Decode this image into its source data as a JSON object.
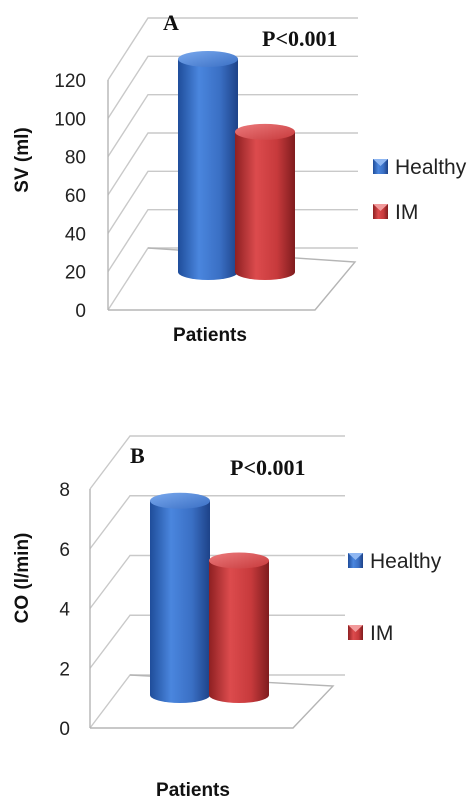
{
  "chart_data": [
    {
      "type": "bar",
      "panel_label": "A",
      "annotation": "P<0.001",
      "categories": [
        "Patients"
      ],
      "xlabel": "Patients",
      "ylabel": "SV (ml)",
      "ylim": [
        0,
        120
      ],
      "yticks": [
        0,
        20,
        40,
        60,
        80,
        100,
        120
      ],
      "series": [
        {
          "name": "Healthy",
          "values": [
            108
          ],
          "color": "#3a6fc4"
        },
        {
          "name": "IM",
          "values": [
            70
          ],
          "color": "#c73a3c"
        }
      ],
      "legend": "right",
      "grid": true
    },
    {
      "type": "bar",
      "panel_label": "B",
      "annotation": "P<0.001",
      "categories": [
        "Patients"
      ],
      "xlabel": "Patients",
      "ylabel": "CO (l/min)",
      "ylim": [
        0,
        8
      ],
      "yticks": [
        0,
        2,
        4,
        6,
        8
      ],
      "series": [
        {
          "name": "Healthy",
          "values": [
            6.3
          ],
          "color": "#3a6fc4"
        },
        {
          "name": "IM",
          "values": [
            4.3
          ],
          "color": "#c73a3c"
        }
      ],
      "legend": "right",
      "grid": true
    }
  ]
}
